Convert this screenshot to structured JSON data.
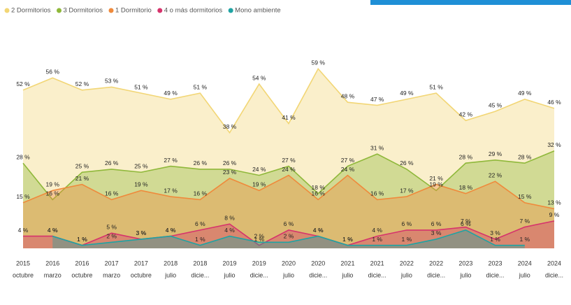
{
  "chart_data": {
    "type": "area",
    "categories": [
      [
        "2015",
        "octubre"
      ],
      [
        "2016",
        "marzo"
      ],
      [
        "2016",
        "octubre"
      ],
      [
        "2017",
        "marzo"
      ],
      [
        "2017",
        "octubre"
      ],
      [
        "2018",
        "julio"
      ],
      [
        "2018",
        "dicie..."
      ],
      [
        "2019",
        "julio"
      ],
      [
        "2019",
        "dicie..."
      ],
      [
        "2020",
        "julio"
      ],
      [
        "2020",
        "dicie..."
      ],
      [
        "2021",
        "julio"
      ],
      [
        "2021",
        "dicie..."
      ],
      [
        "2022",
        "julio"
      ],
      [
        "2022",
        "dicie..."
      ],
      [
        "2023",
        "julio"
      ],
      [
        "2023",
        "dicie..."
      ],
      [
        "2024",
        "julio"
      ],
      [
        "2024",
        "dicie..."
      ]
    ],
    "ylim": [
      0,
      60
    ],
    "series": [
      {
        "name": "2 Dormitorios",
        "color": "#f2d675",
        "values": [
          52,
          56,
          52,
          53,
          51,
          49,
          51,
          38,
          54,
          41,
          59,
          48,
          47,
          49,
          51,
          42,
          45,
          49,
          46
        ],
        "value_labels": [
          "52 %",
          "56 %",
          "52 %",
          "53 %",
          "51 %",
          "49 %",
          "51 %",
          "38 %",
          "54 %",
          "41 %",
          "59 %",
          "48 %",
          "47 %",
          "49 %",
          "51 %",
          "42 %",
          "45 %",
          "49 %",
          "46 %"
        ]
      },
      {
        "name": "3 Dormitorios",
        "color": "#8fb83a",
        "values": [
          28,
          16,
          25,
          26,
          25,
          27,
          26,
          26,
          24,
          27,
          18,
          27,
          31,
          26,
          19,
          28,
          29,
          28,
          32
        ],
        "value_labels": [
          "28 %",
          "16 %",
          "25 %",
          "26 %",
          "25 %",
          "27 %",
          "26 %",
          "26 %",
          "24 %",
          "27 %",
          "18 %",
          "27 %",
          "31 %",
          "26 %",
          "19 %",
          "28 %",
          "29 %",
          "28 %",
          "32 %"
        ]
      },
      {
        "name": "1 Dormitorio",
        "color": "#ef8a3c",
        "values": [
          15,
          19,
          21,
          16,
          19,
          17,
          16,
          23,
          19,
          24,
          16,
          24,
          16,
          17,
          21,
          18,
          22,
          15,
          13
        ],
        "value_labels": [
          "15 %",
          "19 %",
          "21 %",
          "16 %",
          "19 %",
          "17 %",
          "16 %",
          "23 %",
          "19 %",
          "24 %",
          "16 %",
          "24 %",
          "16 %",
          "17 %",
          "21 %",
          "18 %",
          "22 %",
          "15 %",
          "13 %"
        ]
      },
      {
        "name": "4 o más dormitorios",
        "color": "#d6336c",
        "values": [
          4,
          4,
          1,
          5,
          3,
          4,
          6,
          8,
          1,
          6,
          4,
          1,
          4,
          6,
          6,
          7,
          3,
          7,
          9
        ],
        "value_labels": [
          "4 %",
          "4 %",
          "1 %",
          "5 %",
          "3 %",
          "4 %",
          "6 %",
          "8 %",
          "1 %",
          "6 %",
          "4 %",
          "1 %",
          "4 %",
          "6 %",
          "6 %",
          "7 %",
          "3 %",
          "7 %",
          "9 %"
        ]
      },
      {
        "name": "Mono ambiente",
        "color": "#1fa3a3",
        "values": [
          null,
          4,
          1,
          2,
          3,
          4,
          1,
          4,
          2,
          2,
          4,
          1,
          1,
          1,
          3,
          6,
          1,
          1,
          null
        ],
        "value_labels": [
          null,
          "4 %",
          "1 %",
          "2 %",
          "3 %",
          "4 %",
          "1 %",
          "4 %",
          "2 %",
          "2 %",
          "4 %",
          "1 %",
          "1 %",
          "1 %",
          "3 %",
          "6 %",
          "1 %",
          "1 %",
          null
        ]
      }
    ]
  }
}
